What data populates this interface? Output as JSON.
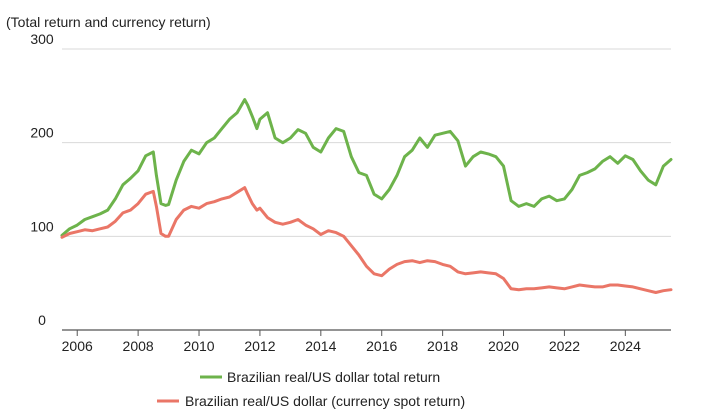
{
  "chart_data": {
    "type": "line",
    "title": "",
    "subtitle": "(Total return and currency return)",
    "xlabel": "",
    "ylabel": "",
    "xlim": [
      2005.5,
      2025.5
    ],
    "ylim": [
      0,
      300
    ],
    "x_ticks": [
      2006,
      2008,
      2010,
      2012,
      2014,
      2016,
      2018,
      2020,
      2022,
      2024
    ],
    "y_ticks": [
      0,
      100,
      200,
      300
    ],
    "grid": "horizontal",
    "legend_position": "bottom-center",
    "series": [
      {
        "name": "Brazilian real/US dollar total return",
        "color": "#6db34b",
        "x": [
          2005.5,
          2005.75,
          2006.0,
          2006.25,
          2006.5,
          2006.75,
          2007.0,
          2007.25,
          2007.5,
          2007.75,
          2008.0,
          2008.25,
          2008.5,
          2008.6,
          2008.75,
          2008.9,
          2009.0,
          2009.25,
          2009.5,
          2009.75,
          2010.0,
          2010.25,
          2010.5,
          2010.75,
          2011.0,
          2011.25,
          2011.5,
          2011.6,
          2011.75,
          2011.9,
          2012.0,
          2012.25,
          2012.5,
          2012.75,
          2013.0,
          2013.25,
          2013.5,
          2013.75,
          2014.0,
          2014.25,
          2014.5,
          2014.75,
          2015.0,
          2015.25,
          2015.5,
          2015.75,
          2016.0,
          2016.25,
          2016.5,
          2016.75,
          2017.0,
          2017.25,
          2017.5,
          2017.75,
          2018.0,
          2018.25,
          2018.5,
          2018.75,
          2019.0,
          2019.25,
          2019.5,
          2019.75,
          2020.0,
          2020.25,
          2020.5,
          2020.75,
          2021.0,
          2021.25,
          2021.5,
          2021.75,
          2022.0,
          2022.25,
          2022.5,
          2022.75,
          2023.0,
          2023.25,
          2023.5,
          2023.75,
          2024.0,
          2024.25,
          2024.5,
          2024.75,
          2025.0,
          2025.25,
          2025.5
        ],
        "values": [
          101,
          108,
          112,
          118,
          121,
          124,
          128,
          140,
          155,
          162,
          170,
          186,
          190,
          165,
          135,
          133,
          134,
          160,
          180,
          192,
          188,
          200,
          205,
          215,
          225,
          232,
          246,
          240,
          228,
          215,
          225,
          232,
          205,
          200,
          205,
          214,
          210,
          195,
          190,
          205,
          215,
          212,
          185,
          168,
          165,
          145,
          140,
          150,
          165,
          185,
          192,
          205,
          195,
          208,
          210,
          212,
          202,
          175,
          185,
          190,
          188,
          185,
          175,
          138,
          132,
          135,
          132,
          140,
          143,
          138,
          140,
          150,
          165,
          168,
          172,
          180,
          185,
          178,
          186,
          182,
          170,
          160,
          155,
          175,
          182
        ]
      },
      {
        "name": "Brazilian real/US dollar (currency spot return)",
        "color": "#ea7667",
        "x": [
          2005.5,
          2005.75,
          2006.0,
          2006.25,
          2006.5,
          2006.75,
          2007.0,
          2007.25,
          2007.5,
          2007.75,
          2008.0,
          2008.25,
          2008.5,
          2008.6,
          2008.75,
          2008.9,
          2009.0,
          2009.25,
          2009.5,
          2009.75,
          2010.0,
          2010.25,
          2010.5,
          2010.75,
          2011.0,
          2011.25,
          2011.5,
          2011.6,
          2011.75,
          2011.9,
          2012.0,
          2012.25,
          2012.5,
          2012.75,
          2013.0,
          2013.25,
          2013.5,
          2013.75,
          2014.0,
          2014.25,
          2014.5,
          2014.75,
          2015.0,
          2015.25,
          2015.5,
          2015.75,
          2016.0,
          2016.25,
          2016.5,
          2016.75,
          2017.0,
          2017.25,
          2017.5,
          2017.75,
          2018.0,
          2018.25,
          2018.5,
          2018.75,
          2019.0,
          2019.25,
          2019.5,
          2019.75,
          2020.0,
          2020.25,
          2020.5,
          2020.75,
          2021.0,
          2021.25,
          2021.5,
          2021.75,
          2022.0,
          2022.25,
          2022.5,
          2022.75,
          2023.0,
          2023.25,
          2023.5,
          2023.75,
          2024.0,
          2024.25,
          2024.5,
          2024.75,
          2025.0,
          2025.25,
          2025.5
        ],
        "values": [
          99,
          103,
          105,
          107,
          106,
          108,
          110,
          116,
          125,
          128,
          135,
          145,
          148,
          132,
          103,
          100,
          100,
          118,
          128,
          132,
          130,
          135,
          137,
          140,
          142,
          147,
          152,
          145,
          135,
          128,
          130,
          120,
          115,
          113,
          115,
          118,
          112,
          108,
          102,
          106,
          104,
          100,
          90,
          80,
          68,
          60,
          58,
          65,
          70,
          73,
          74,
          72,
          74,
          73,
          70,
          68,
          62,
          60,
          61,
          62,
          61,
          60,
          55,
          44,
          43,
          44,
          44,
          45,
          46,
          45,
          44,
          46,
          48,
          47,
          46,
          46,
          48,
          48,
          47,
          46,
          44,
          42,
          40,
          42,
          43
        ]
      }
    ]
  }
}
